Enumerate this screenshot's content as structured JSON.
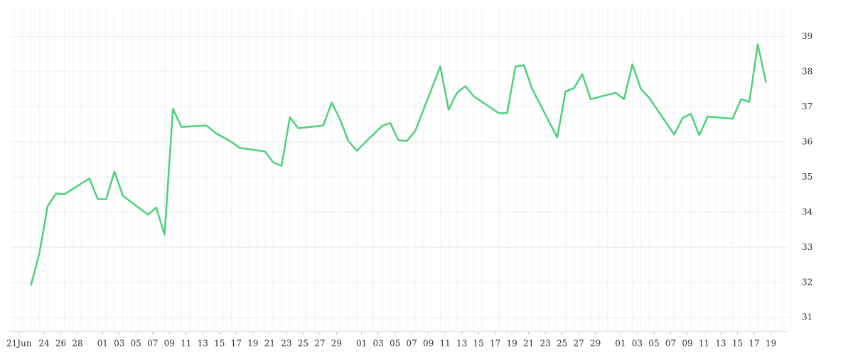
{
  "chart_data": {
    "type": "line",
    "x": [
      "06-22",
      "06-23",
      "06-24",
      "06-25",
      "06-26",
      "06-29",
      "06-30",
      "07-01",
      "07-02",
      "07-03",
      "07-06",
      "07-07",
      "07-08",
      "07-09",
      "07-10",
      "07-13",
      "07-14",
      "07-16",
      "07-17",
      "07-20",
      "07-21",
      "07-22",
      "07-23",
      "07-24",
      "07-27",
      "07-28",
      "07-29",
      "07-30",
      "07-31",
      "08-03",
      "08-04",
      "08-05",
      "08-06",
      "08-07",
      "08-10",
      "08-11",
      "08-12",
      "08-13",
      "08-14",
      "08-17",
      "08-18",
      "08-19",
      "08-20",
      "08-21",
      "08-24",
      "08-25",
      "08-26",
      "08-27",
      "08-28",
      "08-31",
      "09-01",
      "09-02",
      "09-03",
      "09-04",
      "09-07",
      "09-08",
      "09-09",
      "09-10",
      "09-11",
      "09-14",
      "09-15",
      "09-16",
      "09-17",
      "09-18"
    ],
    "series": [
      {
        "color": "#4cd17a",
        "values": [
          31.91,
          32.82,
          34.17,
          34.53,
          34.51,
          34.96,
          34.37,
          34.37,
          35.16,
          34.47,
          33.93,
          34.13,
          33.36,
          36.94,
          36.43,
          36.47,
          36.27,
          36.0,
          35.83,
          35.73,
          35.42,
          35.32,
          36.7,
          36.39,
          36.47,
          37.12,
          36.64,
          36.03,
          35.75,
          36.45,
          36.54,
          36.05,
          36.03,
          36.31,
          38.15,
          36.92,
          37.4,
          37.59,
          37.3,
          36.82,
          36.82,
          38.15,
          38.19,
          37.51,
          36.13,
          37.44,
          37.53,
          37.93,
          37.22,
          37.4,
          37.22,
          38.21,
          37.51,
          37.26,
          36.21,
          36.68,
          36.8,
          36.19,
          36.72,
          36.66,
          37.22,
          37.14,
          38.78,
          37.69
        ]
      }
    ],
    "xlim": [
      "06-20",
      "09-21"
    ],
    "xticks": [
      {
        "value": "06-21",
        "label": "21Jun"
      },
      {
        "value": "06-24",
        "label": "24"
      },
      {
        "value": "06-26",
        "label": "26"
      },
      {
        "value": "06-28",
        "label": "28"
      },
      {
        "value": "07-01",
        "label": "01"
      },
      {
        "value": "07-03",
        "label": "03"
      },
      {
        "value": "07-05",
        "label": "05"
      },
      {
        "value": "07-07",
        "label": "07"
      },
      {
        "value": "07-09",
        "label": "09"
      },
      {
        "value": "07-11",
        "label": "11"
      },
      {
        "value": "07-13",
        "label": "13"
      },
      {
        "value": "07-15",
        "label": "15"
      },
      {
        "value": "07-17",
        "label": "17"
      },
      {
        "value": "07-19",
        "label": "19"
      },
      {
        "value": "07-21",
        "label": "21"
      },
      {
        "value": "07-23",
        "label": "23"
      },
      {
        "value": "07-25",
        "label": "25"
      },
      {
        "value": "07-27",
        "label": "27"
      },
      {
        "value": "07-29",
        "label": "29"
      },
      {
        "value": "08-01",
        "label": "01"
      },
      {
        "value": "08-03",
        "label": "03"
      },
      {
        "value": "08-05",
        "label": "05"
      },
      {
        "value": "08-07",
        "label": "07"
      },
      {
        "value": "08-09",
        "label": "09"
      },
      {
        "value": "08-11",
        "label": "11"
      },
      {
        "value": "08-13",
        "label": "13"
      },
      {
        "value": "08-15",
        "label": "15"
      },
      {
        "value": "08-17",
        "label": "17"
      },
      {
        "value": "08-19",
        "label": "19"
      },
      {
        "value": "08-21",
        "label": "21"
      },
      {
        "value": "08-23",
        "label": "23"
      },
      {
        "value": "08-25",
        "label": "25"
      },
      {
        "value": "08-27",
        "label": "27"
      },
      {
        "value": "08-29",
        "label": "29"
      },
      {
        "value": "09-01",
        "label": "01"
      },
      {
        "value": "09-03",
        "label": "03"
      },
      {
        "value": "09-05",
        "label": "05"
      },
      {
        "value": "09-07",
        "label": "07"
      },
      {
        "value": "09-09",
        "label": "09"
      },
      {
        "value": "09-11",
        "label": "11"
      },
      {
        "value": "09-13",
        "label": "13"
      },
      {
        "value": "09-15",
        "label": "15"
      },
      {
        "value": "09-17",
        "label": "17"
      },
      {
        "value": "09-19",
        "label": "19"
      }
    ],
    "ylim": [
      30.6,
      39.8
    ],
    "yticks": [
      31,
      32,
      33,
      34,
      35,
      36,
      37,
      38,
      39
    ],
    "grid": true,
    "y_axis_side": "right"
  }
}
